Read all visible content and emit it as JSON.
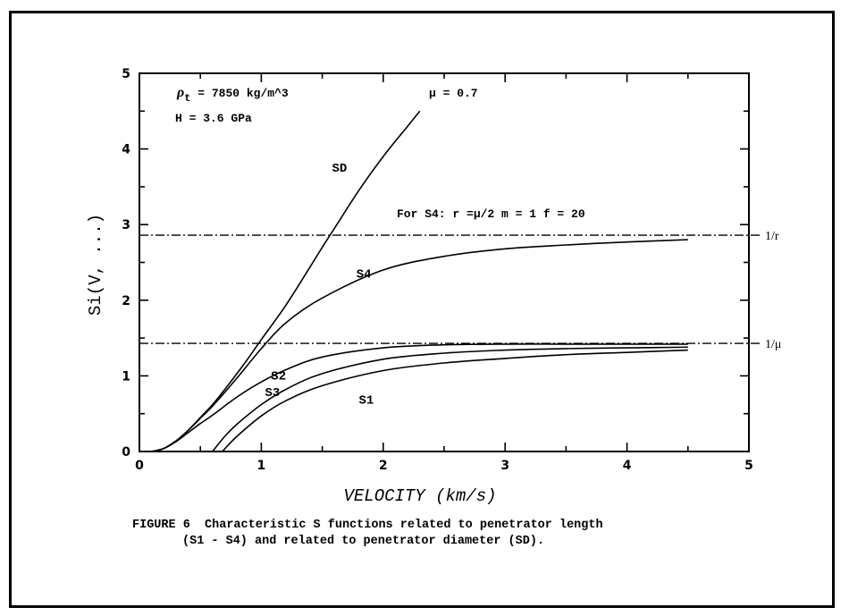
{
  "chart_data": {
    "type": "line",
    "xlabel": "VELOCITY  (km/s)",
    "ylabel": "Si(V, ...)",
    "xlim": [
      0,
      5
    ],
    "ylim": [
      0,
      5
    ],
    "xticks": [
      "0",
      "1",
      "2",
      "3",
      "4",
      "5"
    ],
    "yticks": [
      "0",
      "1",
      "2",
      "3",
      "4",
      "5"
    ],
    "grid": false,
    "annotations": {
      "density": "ρt = 7850 kg/m^3",
      "density_symbol": "ρ",
      "density_subscript": "t",
      "density_value": " = 7850 kg/m^3",
      "mu": "μ  = 0.7",
      "hardness": "H = 3.6 GPa",
      "s4_params": "For S4:  r =μ/2   m = 1    f = 20"
    },
    "reference_lines": [
      {
        "name": "1/r",
        "y": 2.86
      },
      {
        "name": "1/μ",
        "y": 1.43
      }
    ],
    "series": [
      {
        "name": "SD",
        "x": [
          0.1,
          0.2,
          0.3,
          0.4,
          0.5,
          0.6,
          0.7,
          0.8,
          0.9,
          1.0,
          1.2,
          1.4,
          1.5,
          1.6,
          1.8,
          2.0,
          2.2,
          2.3
        ],
        "y": [
          0.0,
          0.04,
          0.14,
          0.28,
          0.45,
          0.62,
          0.82,
          1.03,
          1.25,
          1.48,
          1.93,
          2.44,
          2.7,
          2.95,
          3.45,
          3.9,
          4.3,
          4.5
        ]
      },
      {
        "name": "S4",
        "x": [
          0.1,
          0.2,
          0.3,
          0.4,
          0.5,
          0.6,
          0.8,
          1.0,
          1.2,
          1.5,
          2.0,
          2.5,
          3.0,
          3.5,
          4.0,
          4.5
        ],
        "y": [
          0.0,
          0.04,
          0.14,
          0.28,
          0.44,
          0.6,
          0.97,
          1.36,
          1.7,
          2.03,
          2.4,
          2.58,
          2.68,
          2.73,
          2.77,
          2.8
        ]
      },
      {
        "name": "S2",
        "x": [
          0.1,
          0.2,
          0.3,
          0.4,
          0.5,
          0.6,
          0.8,
          1.0,
          1.2,
          1.5,
          2.0,
          2.5,
          3.0,
          3.5,
          4.0,
          4.5
        ],
        "y": [
          0.0,
          0.04,
          0.13,
          0.25,
          0.37,
          0.48,
          0.72,
          0.92,
          1.08,
          1.25,
          1.37,
          1.41,
          1.42,
          1.42,
          1.42,
          1.42
        ]
      },
      {
        "name": "S3",
        "x": [
          0.6,
          0.7,
          0.8,
          1.0,
          1.2,
          1.5,
          2.0,
          2.5,
          3.0,
          3.5,
          4.0,
          4.5
        ],
        "y": [
          0.0,
          0.2,
          0.36,
          0.62,
          0.82,
          1.03,
          1.22,
          1.3,
          1.34,
          1.36,
          1.37,
          1.38
        ]
      },
      {
        "name": "S1",
        "x": [
          0.68,
          0.8,
          1.0,
          1.2,
          1.5,
          2.0,
          2.5,
          3.0,
          3.5,
          4.0,
          4.5
        ],
        "y": [
          0.0,
          0.2,
          0.47,
          0.67,
          0.87,
          1.07,
          1.17,
          1.23,
          1.28,
          1.31,
          1.34
        ]
      }
    ]
  },
  "caption": {
    "line1": "FIGURE 6  Characteristic S functions related to penetrator length",
    "line2": "(S1 - S4) and related to penetrator diameter (SD)."
  }
}
